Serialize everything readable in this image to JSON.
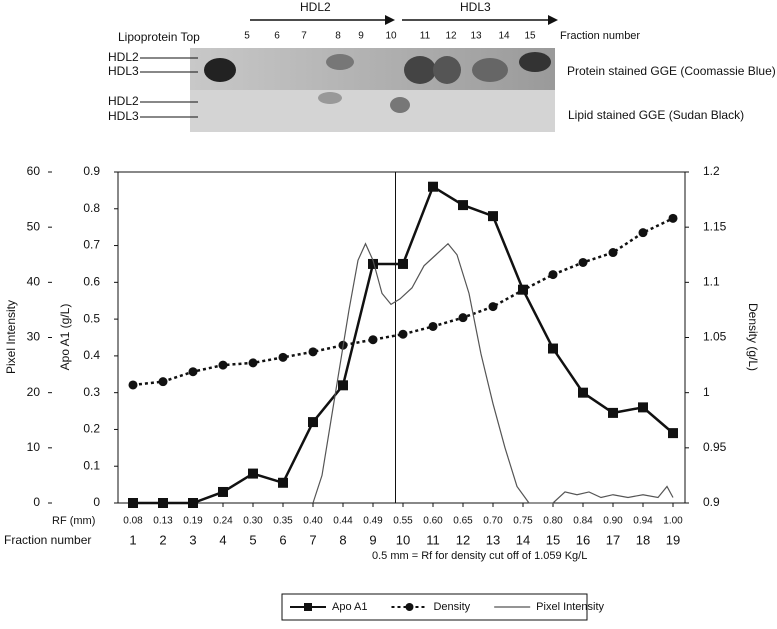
{
  "gel": {
    "arrows": [
      "HDL2",
      "HDL3"
    ],
    "top_label": "Lipoprotein Top",
    "fraction_label": "Fraction number",
    "fractions": [
      "5",
      "6",
      "7",
      "8",
      "9",
      "10",
      "11",
      "12",
      "13",
      "14",
      "15"
    ],
    "row_labels": [
      [
        "HDL2",
        "HDL3"
      ],
      [
        "HDL2",
        "HDL3"
      ]
    ],
    "protein_label": "Protein stained GGE (Coomassie Blue)",
    "lipid_label": "Lipid stained GGE (Sudan Black)"
  },
  "chart_data": {
    "type": "line",
    "y_label": "Pixel Intensity",
    "y2_label": "Apo A1 (g/L)",
    "y3_label": "Density (g/L)",
    "x_label": "Fraction number",
    "rf_label": "RF (mm)",
    "annotation": "0.5 mm = Rf for density cut off of 1.059 Kg/L",
    "xlim": [
      0.5,
      19.4
    ],
    "xticks": [
      1,
      2,
      3,
      4,
      5,
      6,
      7,
      8,
      9,
      10,
      11,
      12,
      13,
      14,
      15,
      16,
      17,
      18,
      19
    ],
    "rf_labels": [
      "0.08",
      "0.13",
      "0.19",
      "0.24",
      "0.30",
      "0.35",
      "0.40",
      "0.44",
      "0.49",
      "0.55",
      "0.60",
      "0.65",
      "0.70",
      "0.75",
      "0.80",
      "0.84",
      "0.90",
      "0.94",
      "1.00"
    ],
    "reference_line_x": 9.75,
    "ylim": [
      0,
      60
    ],
    "yticks": [
      0,
      10,
      20,
      30,
      40,
      50,
      60
    ],
    "y2lim": [
      0,
      0.9
    ],
    "y2ticks": [
      0,
      0.1,
      0.2,
      0.3,
      0.4,
      0.5,
      0.6,
      0.7,
      0.8,
      0.9
    ],
    "y3lim": [
      0.9,
      1.2
    ],
    "y3ticks": [
      0.9,
      0.95,
      1,
      1.05,
      1.1,
      1.15,
      1.2
    ],
    "series": [
      {
        "name": "Apo A1",
        "axis": "y2",
        "color": "#111111",
        "marker": "square",
        "x": [
          1,
          2,
          3,
          4,
          5,
          6,
          7,
          8,
          9,
          10,
          11,
          12,
          13,
          14,
          15,
          16,
          17,
          18,
          19
        ],
        "values": [
          0,
          0,
          0,
          0.03,
          0.08,
          0.055,
          0.22,
          0.32,
          0.65,
          0.65,
          0.86,
          0.81,
          0.78,
          0.58,
          0.42,
          0.3,
          0.245,
          0.26,
          0.19
        ]
      },
      {
        "name": "Density",
        "axis": "y3",
        "color": "#111111",
        "marker": "circle",
        "x": [
          1,
          2,
          3,
          4,
          5,
          6,
          7,
          8,
          9,
          10,
          11,
          12,
          13,
          14,
          15,
          16,
          17,
          18,
          19
        ],
        "values": [
          1.007,
          1.01,
          1.019,
          1.025,
          1.027,
          1.032,
          1.037,
          1.043,
          1.048,
          1.053,
          1.06,
          1.068,
          1.078,
          1.093,
          1.107,
          1.118,
          1.127,
          1.145,
          1.158
        ]
      },
      {
        "name": "Pixel Intensity",
        "axis": "y",
        "color": "#555555",
        "marker": "none",
        "x": [
          7,
          7.3,
          7.6,
          7.9,
          8.2,
          8.5,
          8.75,
          9,
          9.3,
          9.6,
          9.9,
          10.3,
          10.7,
          11.1,
          11.5,
          11.8,
          12.2,
          12.6,
          13,
          13.4,
          13.8,
          14.2,
          15,
          15.4,
          15.8,
          16.2,
          16.6,
          17,
          17.5,
          18,
          18.5,
          18.8,
          19
        ],
        "values": [
          0,
          5,
          15,
          25,
          35,
          44,
          47,
          44,
          38,
          36,
          37,
          39,
          43,
          45,
          47,
          45,
          38,
          27,
          18,
          10,
          3,
          0,
          0,
          2,
          1.5,
          2,
          1,
          1.5,
          1,
          1.5,
          1,
          3,
          1
        ]
      }
    ]
  }
}
